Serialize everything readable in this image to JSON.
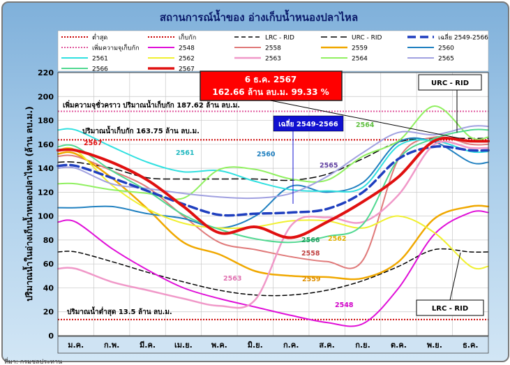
{
  "chart_data": {
    "type": "line",
    "title": "สถานการณ์น้ำของ อ่างเก็บน้ำหนองปลาไหล",
    "ylabel": "ปริมาณน้ำในอ่างเก็บน้ำหนองปลาไหล (ล้าน ลบ.ม.)",
    "xlabel": "",
    "ylim": [
      0,
      220
    ],
    "yticks": [
      0,
      20,
      40,
      60,
      80,
      100,
      120,
      140,
      160,
      180,
      200,
      220
    ],
    "categories": [
      "ม.ค.",
      "ก.พ.",
      "มี.ค.",
      "เม.ย.",
      "พ.ค.",
      "มิ.ย.",
      "ก.ค.",
      "ส.ค.",
      "ก.ย.",
      "ต.ค.",
      "พ.ย.",
      "ธ.ค."
    ],
    "grid": true,
    "legend_position": "top",
    "annotations": {
      "current_date": "6 ธ.ค. 2567",
      "current_value": "162.66 ล้าน ลบ.ม. 99.33 %",
      "temp_capacity": "เพิ่มความจุชั่วคราว ปริมาณน้ำเก็บกัก 187.62 ล้าน ลบ.ม.",
      "capacity": "ปริมาณน้ำเก็บกัก 163.75 ล้าน ลบ.ม.",
      "min_level": "ปริมาณน้ำต่ำสุด 13.5 ล้าน ลบ.ม.",
      "avg_label": "เฉลี่ย 2549-2566",
      "urc_label": "URC - RID",
      "lrc_label": "LRC - RID",
      "footer": "ที่มา: กรมชลประทาน"
    },
    "reference_lines": [
      {
        "name": "ต่ำสุด",
        "value": 13.5,
        "color": "#cc0000",
        "style": "dotted"
      },
      {
        "name": "เก็บกัก",
        "value": 163.75,
        "color": "#cc0000",
        "style": "dotted"
      },
      {
        "name": "เพิ่มความจุเก็บกัก",
        "value": 187.62,
        "color": "#e0569c",
        "style": "dotted"
      }
    ],
    "series": [
      {
        "name": "LRC - RID",
        "color": "#000000",
        "dash": "6,4",
        "width": 1.5,
        "values": [
          70,
          62,
          53,
          45,
          38,
          34,
          34,
          38,
          46,
          58,
          72,
          70
        ]
      },
      {
        "name": "URC - RID",
        "color": "#000000",
        "dash": "9,5",
        "width": 1.5,
        "values": [
          145,
          140,
          132,
          131,
          131,
          131,
          130,
          135,
          148,
          162,
          165,
          165
        ]
      },
      {
        "name": "เฉลี่ย 2549-2566",
        "color": "#1f3fbf",
        "dash": "12,6",
        "width": 3.5,
        "values": [
          142,
          132,
          121,
          110,
          101,
          102,
          103,
          106,
          120,
          148,
          158,
          155
        ]
      },
      {
        "name": "2548",
        "color": "#e010d8",
        "width": 2,
        "values": [
          95,
          73,
          55,
          40,
          31,
          24,
          17,
          11,
          10,
          40,
          85,
          103
        ]
      },
      {
        "name": "2558",
        "color": "#e07a7a",
        "width": 2,
        "values": [
          150,
          138,
          124,
          100,
          78,
          72,
          66,
          62,
          63,
          148,
          166,
          160
        ]
      },
      {
        "name": "2559",
        "color": "#f0a800",
        "width": 2.5,
        "values": [
          152,
          132,
          106,
          78,
          68,
          54,
          50,
          49,
          48,
          62,
          98,
          108
        ]
      },
      {
        "name": "2560",
        "color": "#2080c0",
        "width": 2,
        "values": [
          107,
          108,
          102,
          98,
          90,
          100,
          125,
          120,
          128,
          162,
          162,
          145
        ]
      },
      {
        "name": "2561",
        "color": "#30e0e0",
        "width": 2,
        "values": [
          172,
          158,
          145,
          137,
          138,
          129,
          122,
          121,
          124,
          159,
          163,
          154
        ]
      },
      {
        "name": "2562",
        "color": "#f0f030",
        "width": 2,
        "values": [
          155,
          126,
          106,
          94,
          90,
          91,
          96,
          96,
          90,
          100,
          86,
          58
        ]
      },
      {
        "name": "2563",
        "color": "#f098c8",
        "width": 2.5,
        "values": [
          56,
          45,
          38,
          31,
          25,
          30,
          92,
          99,
          95,
          118,
          160,
          157
        ]
      },
      {
        "name": "2564",
        "color": "#90f060",
        "width": 2,
        "values": [
          127,
          122,
          119,
          115,
          139,
          139,
          131,
          130,
          150,
          163,
          192,
          166
        ]
      },
      {
        "name": "2565",
        "color": "#a0a0e0",
        "width": 2,
        "values": [
          140,
          127,
          123,
          119,
          116,
          115,
          119,
          133,
          153,
          170,
          168,
          175
        ]
      },
      {
        "name": "2566",
        "color": "#50d890",
        "width": 2,
        "values": [
          158,
          138,
          121,
          101,
          89,
          81,
          78,
          83,
          93,
          148,
          165,
          172
        ]
      },
      {
        "name": "2567",
        "color": "#e01010",
        "width": 4,
        "values": [
          155,
          145,
          130,
          108,
          86,
          91,
          82,
          95,
          112,
          133,
          163,
          162.66
        ]
      }
    ]
  }
}
